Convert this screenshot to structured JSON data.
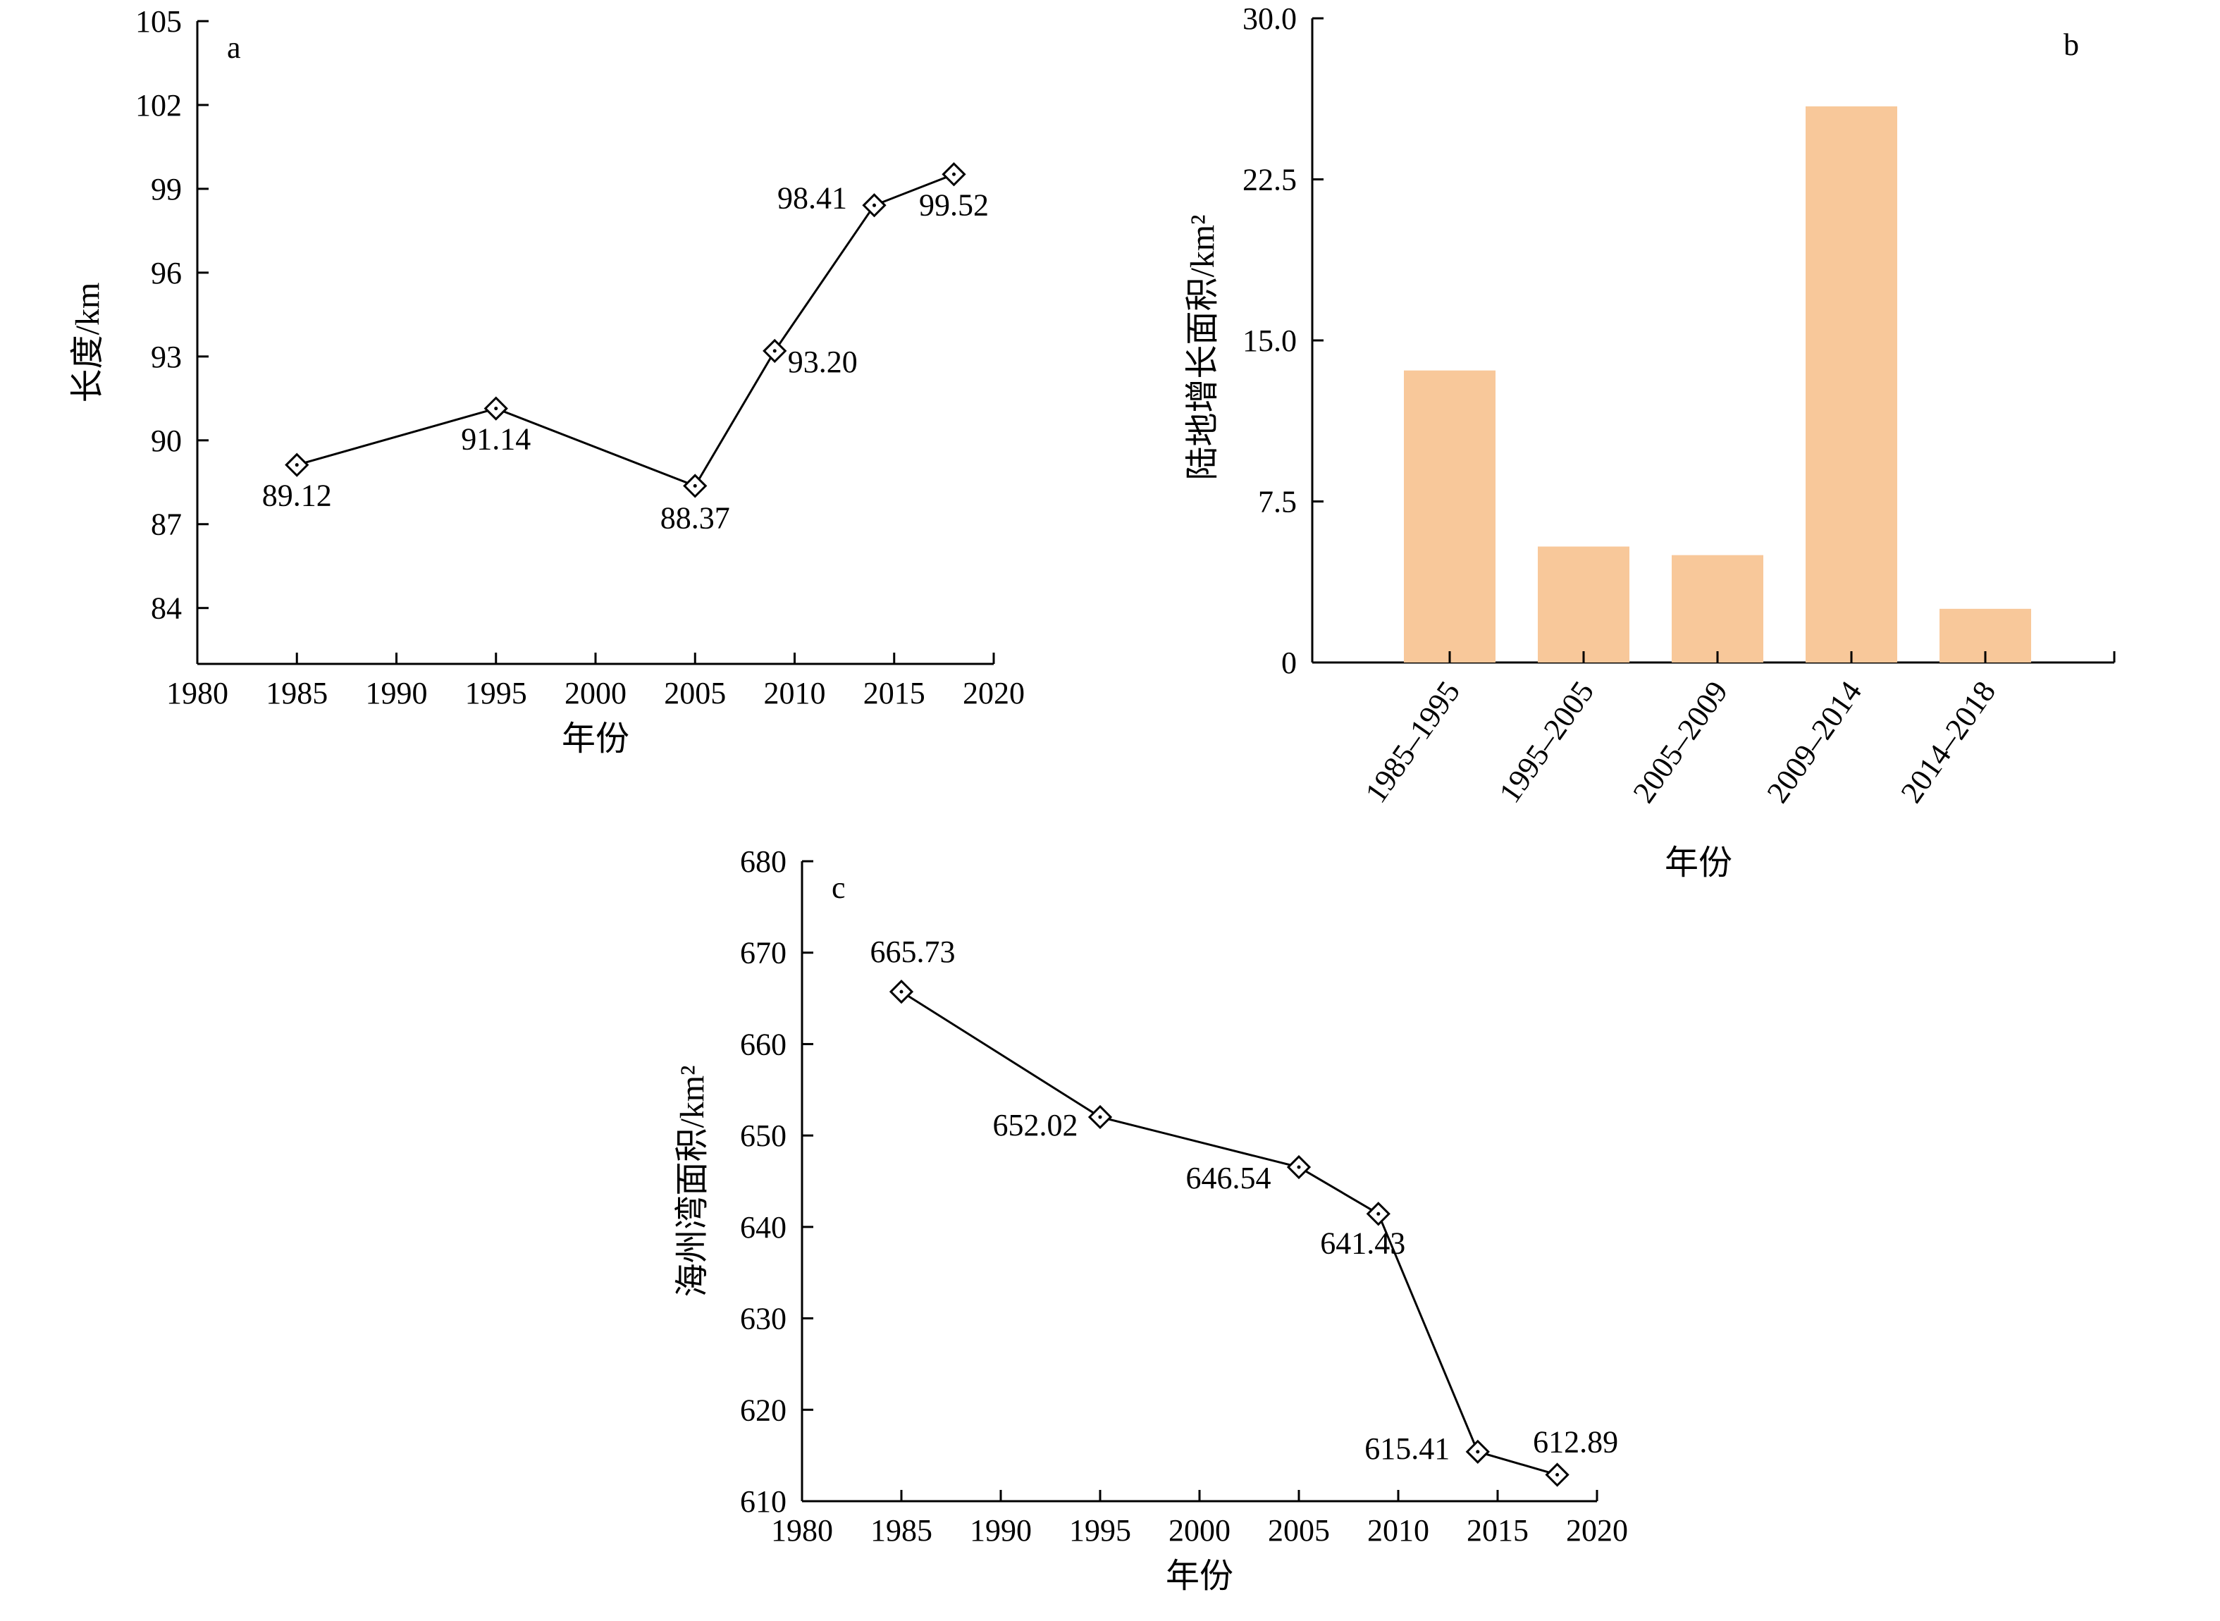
{
  "figure": {
    "panels": [
      "a",
      "b",
      "c"
    ]
  },
  "chart_data": [
    {
      "id": "a",
      "type": "line",
      "panel_letter": "a",
      "xlabel": "年份",
      "ylabel": "长度/km",
      "xlim": [
        1980,
        2020
      ],
      "ylim": [
        82,
        105
      ],
      "x_ticks": [
        1980,
        1985,
        1990,
        1995,
        2000,
        2005,
        2010,
        2015,
        2020
      ],
      "x_tick_labels": [
        "1980",
        "1985",
        "1990",
        "1995",
        "2000",
        "2005",
        "2010",
        "2015",
        "2020"
      ],
      "y_ticks": [
        84,
        87,
        90,
        93,
        96,
        99,
        102,
        105
      ],
      "y_tick_labels": [
        "84",
        "87",
        "90",
        "93",
        "96",
        "99",
        "102",
        "105"
      ],
      "x": [
        1985,
        1995,
        2005,
        2009,
        2014,
        2018
      ],
      "values": [
        89.12,
        91.14,
        88.37,
        93.2,
        98.41,
        99.52
      ],
      "data_labels": [
        "89.12",
        "91.14",
        "88.37",
        "93.20",
        "98.41",
        "99.52"
      ],
      "marker": "diamond",
      "grid": false
    },
    {
      "id": "b",
      "type": "bar",
      "panel_letter": "b",
      "xlabel": "年份",
      "ylabel": "陆地增长面积/km²",
      "ylim": [
        0,
        30
      ],
      "y_ticks": [
        0,
        7.5,
        15,
        22.5,
        30
      ],
      "y_tick_labels": [
        "0",
        "7.5",
        "15.0",
        "22.5",
        "30.0"
      ],
      "categories": [
        "1985–1995",
        "1995–2005",
        "2005–2009",
        "2009–2014",
        "2014–2018"
      ],
      "values": [
        13.6,
        5.4,
        5.0,
        25.9,
        2.5
      ],
      "bar_color": "#f8c89a",
      "grid": false
    },
    {
      "id": "c",
      "type": "line",
      "panel_letter": "c",
      "xlabel": "年份",
      "ylabel": "海州湾面积/km²",
      "xlim": [
        1980,
        2020
      ],
      "ylim": [
        610,
        680
      ],
      "x_ticks": [
        1980,
        1985,
        1990,
        1995,
        2000,
        2005,
        2010,
        2015,
        2020
      ],
      "x_tick_labels": [
        "1980",
        "1985",
        "1990",
        "1995",
        "2000",
        "2005",
        "2010",
        "2015",
        "2020"
      ],
      "y_ticks": [
        610,
        620,
        630,
        640,
        650,
        660,
        670,
        680
      ],
      "y_tick_labels": [
        "610",
        "620",
        "630",
        "640",
        "650",
        "660",
        "670",
        "680"
      ],
      "x": [
        1985,
        1995,
        2005,
        2009,
        2014,
        2018
      ],
      "values": [
        665.73,
        652.02,
        646.54,
        641.43,
        615.41,
        612.89
      ],
      "data_labels": [
        "665.73",
        "652.02",
        "646.54",
        "641.43",
        "615.41",
        "612.89"
      ],
      "marker": "diamond",
      "grid": false
    }
  ]
}
